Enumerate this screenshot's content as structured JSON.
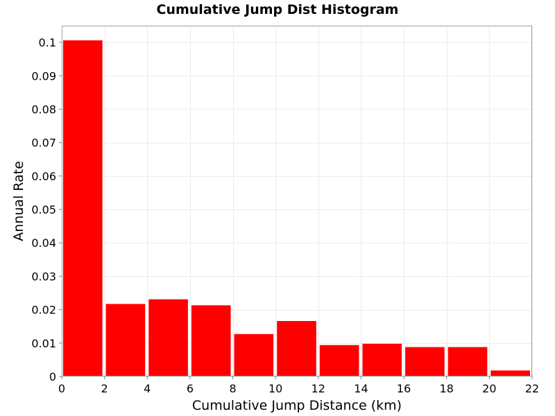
{
  "chart_data": {
    "type": "bar",
    "title": "Cumulative Jump Dist Histogram",
    "xlabel": "Cumulative Jump Distance (km)",
    "ylabel": "Annual Rate",
    "xlim": [
      0,
      22
    ],
    "ylim": [
      0,
      0.105
    ],
    "bin_width": 2,
    "x_ticks": [
      0,
      2,
      4,
      6,
      8,
      10,
      12,
      14,
      16,
      18,
      20,
      22
    ],
    "x_tick_labels": [
      "0",
      "2",
      "4",
      "6",
      "8",
      "10",
      "12",
      "14",
      "16",
      "18",
      "20",
      "22"
    ],
    "y_ticks": [
      0,
      0.01,
      0.02,
      0.03,
      0.04,
      0.05,
      0.06,
      0.07,
      0.08,
      0.09,
      0.1
    ],
    "y_tick_labels": [
      "0",
      "0.01",
      "0.02",
      "0.03",
      "0.04",
      "0.05",
      "0.06",
      "0.07",
      "0.08",
      "0.09",
      "0.1"
    ],
    "bins": [
      {
        "x_start": 0,
        "x_end": 2,
        "value": 0.1006
      },
      {
        "x_start": 2,
        "x_end": 4,
        "value": 0.0217
      },
      {
        "x_start": 4,
        "x_end": 6,
        "value": 0.0231
      },
      {
        "x_start": 6,
        "x_end": 8,
        "value": 0.0213
      },
      {
        "x_start": 8,
        "x_end": 10,
        "value": 0.0127
      },
      {
        "x_start": 10,
        "x_end": 12,
        "value": 0.0166
      },
      {
        "x_start": 12,
        "x_end": 14,
        "value": 0.0094
      },
      {
        "x_start": 14,
        "x_end": 16,
        "value": 0.0098
      },
      {
        "x_start": 16,
        "x_end": 18,
        "value": 0.0088
      },
      {
        "x_start": 18,
        "x_end": 20,
        "value": 0.0088
      },
      {
        "x_start": 20,
        "x_end": 22,
        "value": 0.0018
      }
    ],
    "bar_color": "#ff0000",
    "grid": true,
    "grid_color": "#ebebeb",
    "legend": "none"
  }
}
